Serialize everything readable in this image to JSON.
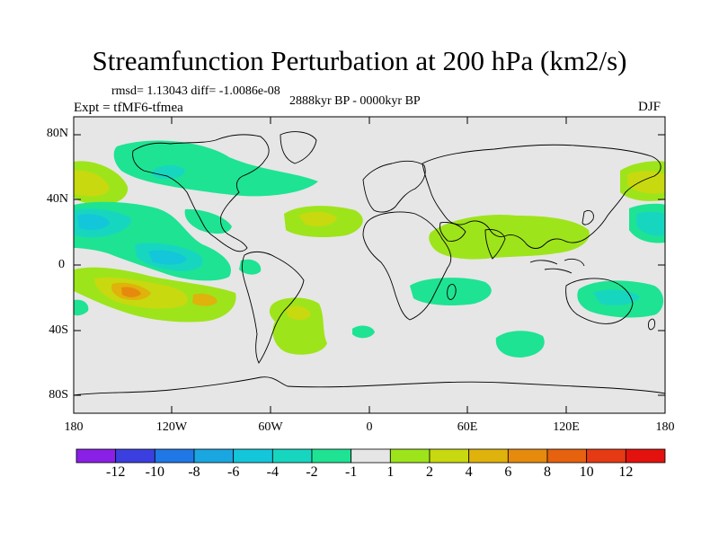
{
  "title": "Streamfunction Perturbation at 200 hPa (km2/s)",
  "stats": "rmsd= 1.13043 diff= -1.0086e-08",
  "experiment": "Expt = tfMF6-tfmea",
  "period": "2888kyr BP - 0000kyr BP",
  "season": "DJF",
  "lat_labels": [
    "80N",
    "40N",
    "0",
    "40S",
    "80S"
  ],
  "lon_labels": [
    "180",
    "120W",
    "60W",
    "0",
    "60E",
    "120E",
    "180"
  ],
  "colorbar": {
    "labels": [
      "-12",
      "-10",
      "-8",
      "-6",
      "-4",
      "-2",
      "-1",
      "1",
      "2",
      "4",
      "6",
      "8",
      "10",
      "12"
    ],
    "colors": [
      "#8a1fe6",
      "#3b3fe0",
      "#1f78e6",
      "#1aa6e0",
      "#14c6d9",
      "#17d6c0",
      "#1ee393",
      "#e6e6e6",
      "#9ee41b",
      "#c8d90f",
      "#e0b20c",
      "#e68a0d",
      "#e6620e",
      "#e63a14",
      "#e3120f"
    ]
  },
  "map_data": {
    "projection": "cylindrical-equidistant",
    "lon_range": [
      -180,
      180
    ],
    "lat_range": [
      -90,
      90
    ],
    "contour_fill": "streamfunction perturbation (km2/s)",
    "coastlines": true
  }
}
